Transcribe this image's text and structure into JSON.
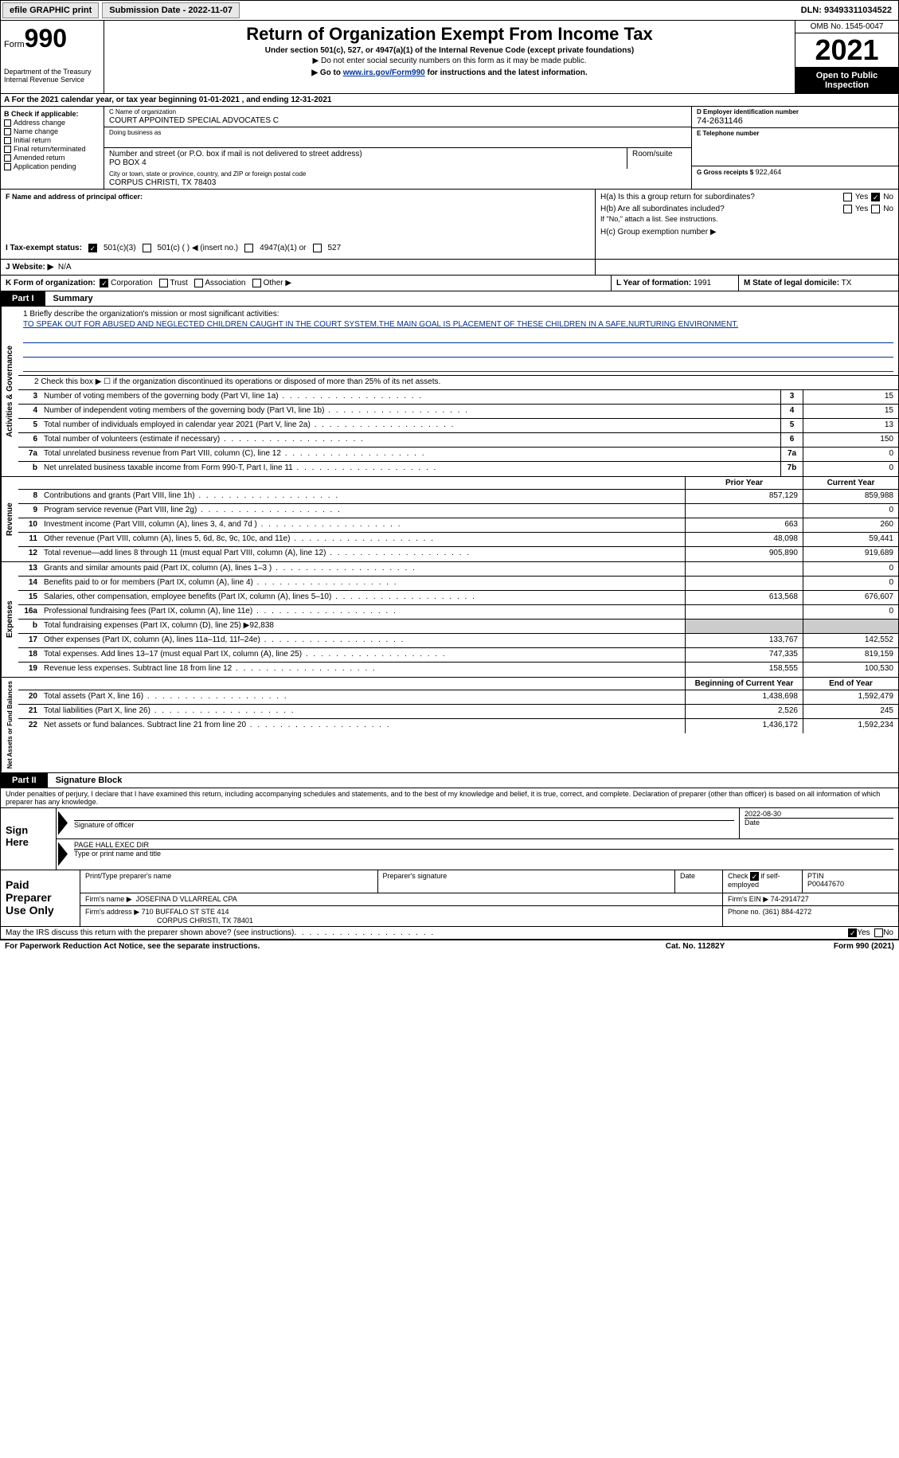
{
  "topbar": {
    "efile": "efile GRAPHIC print",
    "submission": "Submission Date - 2022-11-07",
    "dln": "DLN: 93493311034522"
  },
  "header": {
    "form": "Form",
    "formnum": "990",
    "dept": "Department of the Treasury Internal Revenue Service",
    "title": "Return of Organization Exempt From Income Tax",
    "sub1": "Under section 501(c), 527, or 4947(a)(1) of the Internal Revenue Code (except private foundations)",
    "sub2": "▶ Do not enter social security numbers on this form as it may be made public.",
    "sub3_pre": "▶ Go to ",
    "sub3_link": "www.irs.gov/Form990",
    "sub3_post": " for instructions and the latest information.",
    "omb": "OMB No. 1545-0047",
    "year": "2021",
    "open": "Open to Public Inspection"
  },
  "rowA": "A For the 2021 calendar year, or tax year beginning 01-01-2021    , and ending 12-31-2021",
  "colB": {
    "lbl": "B Check if applicable:",
    "opts": [
      "Address change",
      "Name change",
      "Initial return",
      "Final return/terminated",
      "Amended return",
      "Application pending"
    ]
  },
  "colC": {
    "name_lbl": "C Name of organization",
    "name": "COURT APPOINTED SPECIAL ADVOCATES C",
    "dba_lbl": "Doing business as",
    "addr_lbl": "Number and street (or P.O. box if mail is not delivered to street address)",
    "room_lbl": "Room/suite",
    "addr": "PO BOX 4",
    "city_lbl": "City or town, state or province, country, and ZIP or foreign postal code",
    "city": "CORPUS CHRISTI, TX  78403"
  },
  "colD": {
    "ein_lbl": "D Employer identification number",
    "ein": "74-2631146",
    "tel_lbl": "E Telephone number",
    "gross_lbl": "G Gross receipts $",
    "gross": "922,464"
  },
  "rowF": {
    "lbl": "F Name and address of principal officer:"
  },
  "rowH": {
    "ha": "H(a)  Is this a group return for subordinates?",
    "hb": "H(b)  Are all subordinates included?",
    "hb_note": "If \"No,\" attach a list. See instructions.",
    "hc": "H(c)  Group exemption number ▶",
    "yes": "Yes",
    "no": "No"
  },
  "rowI": {
    "lbl": "I  Tax-exempt status:",
    "o1": "501(c)(3)",
    "o2": "501(c) (  ) ◀ (insert no.)",
    "o3": "4947(a)(1) or",
    "o4": "527"
  },
  "rowJ": {
    "lbl": "J  Website: ▶",
    "val": "N/A"
  },
  "rowK": {
    "lbl": "K Form of organization:",
    "o1": "Corporation",
    "o2": "Trust",
    "o3": "Association",
    "o4": "Other ▶",
    "l_lbl": "L Year of formation:",
    "l_val": "1991",
    "m_lbl": "M State of legal domicile:",
    "m_val": "TX"
  },
  "parts": {
    "p1": "Part I",
    "p1t": "Summary",
    "p2": "Part II",
    "p2t": "Signature Block"
  },
  "mission": {
    "lbl": "1  Briefly describe the organization's mission or most significant activities:",
    "txt": "TO SPEAK OUT FOR ABUSED AND NEGLECTED CHILDREN CAUGHT IN THE COURT SYSTEM.THE MAIN GOAL IS PLACEMENT OF THESE CHILDREN IN A SAFE,NURTURING ENVIRONMENT."
  },
  "line2": "2    Check this box ▶ ☐  if the organization discontinued its operations or disposed of more than 25% of its net assets.",
  "vtabs": {
    "ag": "Activities & Governance",
    "rev": "Revenue",
    "exp": "Expenses",
    "net": "Net Assets or Fund Balances"
  },
  "cols": {
    "prior": "Prior Year",
    "current": "Current Year",
    "boy": "Beginning of Current Year",
    "eoy": "End of Year"
  },
  "lines_ag": [
    {
      "n": "3",
      "d": "Number of voting members of the governing body (Part VI, line 1a)",
      "b": "3",
      "v": "15"
    },
    {
      "n": "4",
      "d": "Number of independent voting members of the governing body (Part VI, line 1b)",
      "b": "4",
      "v": "15"
    },
    {
      "n": "5",
      "d": "Total number of individuals employed in calendar year 2021 (Part V, line 2a)",
      "b": "5",
      "v": "13"
    },
    {
      "n": "6",
      "d": "Total number of volunteers (estimate if necessary)",
      "b": "6",
      "v": "150"
    },
    {
      "n": "7a",
      "d": "Total unrelated business revenue from Part VIII, column (C), line 12",
      "b": "7a",
      "v": "0"
    },
    {
      "n": "b",
      "d": "Net unrelated business taxable income from Form 990-T, Part I, line 11",
      "b": "7b",
      "v": "0"
    }
  ],
  "lines_rev": [
    {
      "n": "8",
      "d": "Contributions and grants (Part VIII, line 1h)",
      "p": "857,129",
      "c": "859,988"
    },
    {
      "n": "9",
      "d": "Program service revenue (Part VIII, line 2g)",
      "p": "",
      "c": "0"
    },
    {
      "n": "10",
      "d": "Investment income (Part VIII, column (A), lines 3, 4, and 7d )",
      "p": "663",
      "c": "260"
    },
    {
      "n": "11",
      "d": "Other revenue (Part VIII, column (A), lines 5, 6d, 8c, 9c, 10c, and 11e)",
      "p": "48,098",
      "c": "59,441"
    },
    {
      "n": "12",
      "d": "Total revenue—add lines 8 through 11 (must equal Part VIII, column (A), line 12)",
      "p": "905,890",
      "c": "919,689"
    }
  ],
  "lines_exp": [
    {
      "n": "13",
      "d": "Grants and similar amounts paid (Part IX, column (A), lines 1–3 )",
      "p": "",
      "c": "0"
    },
    {
      "n": "14",
      "d": "Benefits paid to or for members (Part IX, column (A), line 4)",
      "p": "",
      "c": "0"
    },
    {
      "n": "15",
      "d": "Salaries, other compensation, employee benefits (Part IX, column (A), lines 5–10)",
      "p": "613,568",
      "c": "676,607"
    },
    {
      "n": "16a",
      "d": "Professional fundraising fees (Part IX, column (A), line 11e)",
      "p": "",
      "c": "0"
    },
    {
      "n": "b",
      "d": "Total fundraising expenses (Part IX, column (D), line 25) ▶92,838",
      "shade": true
    },
    {
      "n": "17",
      "d": "Other expenses (Part IX, column (A), lines 11a–11d, 11f–24e)",
      "p": "133,767",
      "c": "142,552"
    },
    {
      "n": "18",
      "d": "Total expenses. Add lines 13–17 (must equal Part IX, column (A), line 25)",
      "p": "747,335",
      "c": "819,159"
    },
    {
      "n": "19",
      "d": "Revenue less expenses. Subtract line 18 from line 12",
      "p": "158,555",
      "c": "100,530"
    }
  ],
  "lines_net": [
    {
      "n": "20",
      "d": "Total assets (Part X, line 16)",
      "p": "1,438,698",
      "c": "1,592,479"
    },
    {
      "n": "21",
      "d": "Total liabilities (Part X, line 26)",
      "p": "2,526",
      "c": "245"
    },
    {
      "n": "22",
      "d": "Net assets or fund balances. Subtract line 21 from line 20",
      "p": "1,436,172",
      "c": "1,592,234"
    }
  ],
  "declare": "Under penalties of perjury, I declare that I have examined this return, including accompanying schedules and statements, and to the best of my knowledge and belief, it is true, correct, and complete. Declaration of preparer (other than officer) is based on all information of which preparer has any knowledge.",
  "sign": {
    "lbl": "Sign Here",
    "sig_lbl": "Signature of officer",
    "date": "2022-08-30",
    "date_lbl": "Date",
    "name": "PAGE HALL  EXEC DIR",
    "name_lbl": "Type or print name and title"
  },
  "prep": {
    "lbl": "Paid Preparer Use Only",
    "h1": "Print/Type preparer's name",
    "h2": "Preparer's signature",
    "h3": "Date",
    "h4_pre": "Check",
    "h4_post": "if self-employed",
    "ptin_lbl": "PTIN",
    "ptin": "P00447670",
    "firm_lbl": "Firm's name    ▶",
    "firm": "JOSEFINA D VLLARREAL CPA",
    "ein_lbl": "Firm's EIN ▶",
    "ein": "74-2914727",
    "addr_lbl": "Firm's address ▶",
    "addr1": "710 BUFFALO ST STE 414",
    "addr2": "CORPUS CHRISTI, TX  78401",
    "phone_lbl": "Phone no.",
    "phone": "(361) 884-4272"
  },
  "discuss": {
    "txt": "May the IRS discuss this return with the preparer shown above? (see instructions)",
    "yes": "Yes",
    "no": "No"
  },
  "footer": {
    "l": "For Paperwork Reduction Act Notice, see the separate instructions.",
    "m": "Cat. No. 11282Y",
    "r": "Form 990 (2021)"
  }
}
